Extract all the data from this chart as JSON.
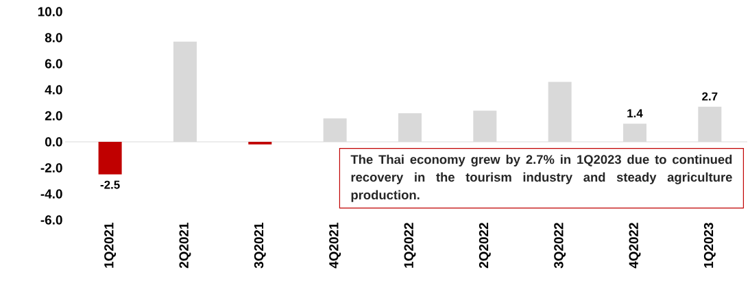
{
  "chart_data": {
    "type": "bar",
    "categories": [
      "1Q2021",
      "2Q2021",
      "3Q2021",
      "4Q2021",
      "1Q2022",
      "2Q2022",
      "3Q2022",
      "4Q2022",
      "1Q2023"
    ],
    "values": [
      -2.5,
      7.7,
      -0.2,
      1.8,
      2.2,
      2.4,
      4.6,
      1.4,
      2.7
    ],
    "colors": [
      "#c00000",
      "#d9d9d9",
      "#c00000",
      "#d9d9d9",
      "#d9d9d9",
      "#d9d9d9",
      "#d9d9d9",
      "#d9d9d9",
      "#d9d9d9"
    ],
    "value_labels": [
      "-2.5",
      null,
      null,
      null,
      null,
      null,
      null,
      "1.4",
      "2.7"
    ],
    "ylim": [
      -6,
      10
    ],
    "yticks": [
      {
        "value": -6,
        "label": "-6.0"
      },
      {
        "value": -4,
        "label": "-4.0"
      },
      {
        "value": -2,
        "label": "-2.0"
      },
      {
        "value": 0,
        "label": "0.0"
      },
      {
        "value": 2,
        "label": "2.0"
      },
      {
        "value": 4,
        "label": "4.0"
      },
      {
        "value": 6,
        "label": "6.0"
      },
      {
        "value": 8,
        "label": "8.0"
      },
      {
        "value": 10,
        "label": "10.0"
      }
    ],
    "annotations": [
      "The Thai economy grew by 2.7% in 1Q2023 due to continued recovery in the tourism industry and steady agriculture production."
    ],
    "ylabel": null
  }
}
